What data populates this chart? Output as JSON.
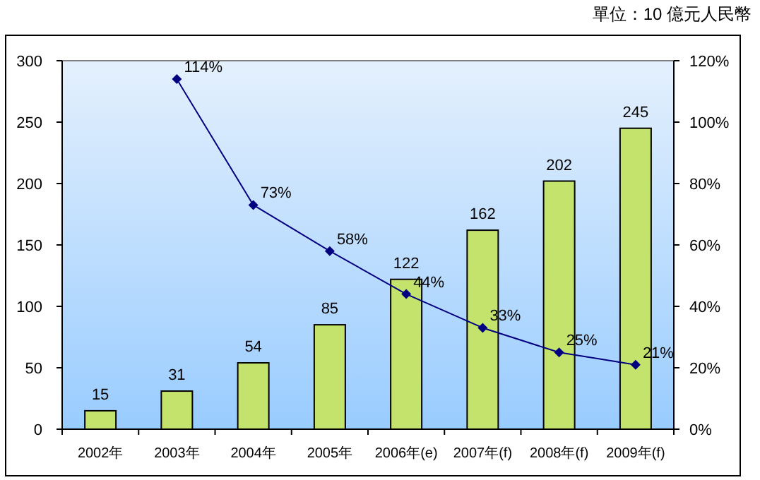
{
  "chart_data": {
    "type": "bar",
    "annotations": [
      "單位：10 億元人民幣"
    ],
    "categories": [
      "2002年",
      "2003年",
      "2004年",
      "2005年",
      "2006年(e)",
      "2007年(f)",
      "2008年(f)",
      "2009年(f)"
    ],
    "series": [
      {
        "color": "#c4e36c",
        "values": [
          15,
          31,
          54,
          85,
          122,
          162,
          202,
          245
        ]
      },
      {
        "type": "line",
        "axis": "y2",
        "color": "#000080",
        "marker": "diamond",
        "values": [
          null,
          114,
          73,
          58,
          44,
          33,
          25,
          21
        ],
        "value_labels": [
          null,
          "114%",
          "73%",
          "58%",
          "44%",
          "33%",
          "25%",
          "21%"
        ]
      }
    ],
    "data_labels": true,
    "ylim": [
      0,
      300
    ],
    "yticks": [
      0,
      50,
      100,
      150,
      200,
      250,
      300
    ],
    "y2lim": [
      0,
      120
    ],
    "y2ticks": [
      {
        "value": 0,
        "label": "0%"
      },
      {
        "value": 20,
        "label": "20%"
      },
      {
        "value": 40,
        "label": "40%"
      },
      {
        "value": 60,
        "label": "60%"
      },
      {
        "value": 80,
        "label": "80%"
      },
      {
        "value": 100,
        "label": "100%"
      },
      {
        "value": 120,
        "label": "120%"
      }
    ],
    "grid": false
  }
}
